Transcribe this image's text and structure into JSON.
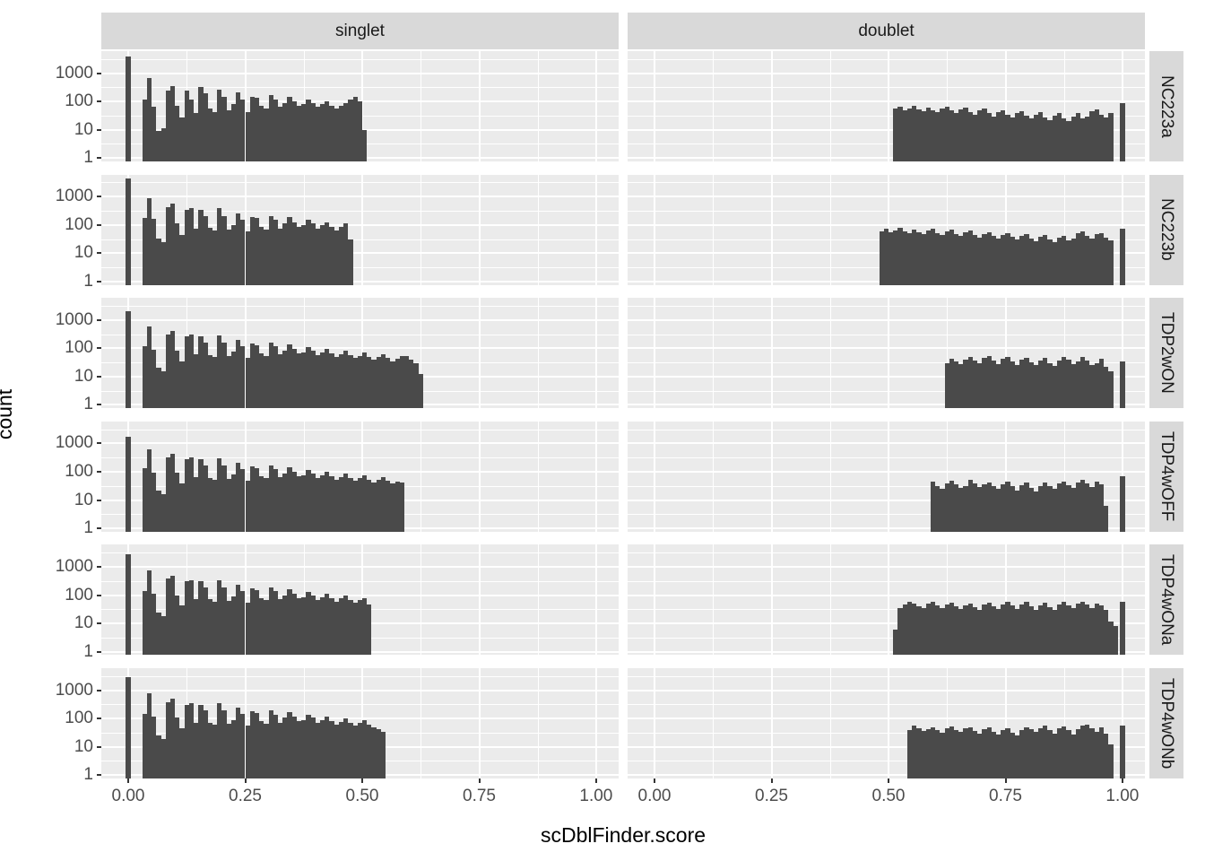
{
  "chart_data": {
    "type": "bar",
    "subtype": "faceted-histogram-grid",
    "title": "",
    "xlabel": "scDblFinder.score",
    "ylabel": "count",
    "x_axis": {
      "label": "scDblFinder.score",
      "ticks": [
        0.0,
        0.25,
        0.5,
        0.75,
        1.0
      ],
      "tick_labels": [
        "0.00",
        "0.25",
        "0.50",
        "0.75",
        "1.00"
      ],
      "minor_ticks": [
        0.125,
        0.375,
        0.625,
        0.875
      ],
      "range": [
        -0.0575,
        1.048
      ]
    },
    "y_axis": {
      "label": "count",
      "scale": "log10",
      "ticks": [
        1,
        10,
        100,
        1000
      ],
      "tick_labels": [
        "1",
        "10",
        "100",
        "1000"
      ],
      "minor_log10": [
        0.5,
        1.5,
        2.5,
        3.5
      ],
      "range_log10": [
        -0.12,
        3.78
      ]
    },
    "col_facets": [
      "singlet",
      "doublet"
    ],
    "row_facets": [
      "NC223a",
      "NC223b",
      "TDP2wON",
      "TDP4wOFF",
      "TDP4wONa",
      "TDP4wONb"
    ],
    "binwidth": 0.01,
    "colors": {
      "bar": "#4a4a4a",
      "panel_bg": "#EBEBEB",
      "strip_bg": "#D9D9D9",
      "grid": "#ffffff",
      "tick_text": "#4D4D4D",
      "strip_text": "#1a1a1a",
      "axis_title_text": "#000000"
    },
    "grid": true,
    "legend": "none",
    "panels": [
      {
        "row": "NC223a",
        "col": "singlet",
        "zero_bar": {
          "x": 0.0,
          "count": 4000
        },
        "bars_start": 0.03,
        "counts": [
          115,
          690,
          63,
          9,
          11,
          245,
          355,
          71,
          28,
          245,
          115,
          38,
          315,
          190,
          55,
          43,
          256,
          150,
          49,
          80,
          215,
          115,
          43,
          150,
          132,
          71,
          55,
          167,
          115,
          63,
          90,
          150,
          102,
          71,
          80,
          115,
          90,
          63,
          80,
          102,
          71,
          55,
          71,
          90,
          120,
          142,
          100,
          10
        ]
      },
      {
        "row": "NC223a",
        "col": "doublet",
        "bars_start": 0.51,
        "counts": [
          55,
          65,
          48,
          58,
          70,
          52,
          45,
          60,
          50,
          42,
          55,
          65,
          48,
          38,
          52,
          60,
          42,
          35,
          48,
          55,
          38,
          30,
          42,
          50,
          35,
          28,
          38,
          45,
          32,
          25,
          35,
          42,
          28,
          22,
          32,
          40,
          26,
          20,
          30,
          38,
          25,
          30,
          45,
          52,
          35,
          28,
          40
        ],
        "end_bar": {
          "x": 1.0,
          "count": 90
        }
      },
      {
        "row": "NC223b",
        "col": "singlet",
        "zero_bar": {
          "x": 0.0,
          "count": 4400
        },
        "bars_start": 0.03,
        "counts": [
          170,
          900,
          165,
          32,
          24,
          430,
          560,
          110,
          45,
          330,
          380,
          75,
          330,
          210,
          80,
          65,
          380,
          210,
          70,
          95,
          260,
          150,
          60,
          195,
          170,
          85,
          70,
          210,
          150,
          75,
          110,
          185,
          120,
          85,
          95,
          150,
          110,
          75,
          95,
          120,
          85,
          65,
          85,
          110,
          30
        ]
      },
      {
        "row": "NC223b",
        "col": "doublet",
        "bars_start": 0.48,
        "counts": [
          60,
          72,
          55,
          65,
          80,
          58,
          50,
          68,
          56,
          48,
          62,
          72,
          52,
          44,
          58,
          66,
          48,
          40,
          54,
          62,
          44,
          36,
          48,
          56,
          40,
          33,
          44,
          52,
          38,
          30,
          42,
          48,
          34,
          27,
          38,
          45,
          30,
          25,
          36,
          42,
          28,
          34,
          50,
          58,
          40,
          32,
          46,
          52,
          36,
          28
        ],
        "end_bar": {
          "x": 1.0,
          "count": 75
        }
      },
      {
        "row": "TDP2wON",
        "col": "singlet",
        "zero_bar": {
          "x": 0.0,
          "count": 2100
        },
        "bars_start": 0.03,
        "counts": [
          120,
          600,
          90,
          20,
          15,
          310,
          420,
          85,
          35,
          260,
          300,
          60,
          260,
          160,
          58,
          48,
          290,
          160,
          52,
          75,
          205,
          120,
          45,
          150,
          130,
          68,
          55,
          160,
          115,
          60,
          85,
          140,
          95,
          65,
          72,
          110,
          85,
          58,
          70,
          95,
          65,
          50,
          62,
          80,
          58,
          45,
          55,
          70,
          50,
          40,
          48,
          62,
          45,
          35,
          42,
          55,
          52,
          40,
          30,
          12
        ]
      },
      {
        "row": "TDP2wON",
        "col": "doublet",
        "bars_start": 0.62,
        "counts": [
          30,
          42,
          35,
          28,
          40,
          50,
          38,
          30,
          45,
          52,
          36,
          28,
          42,
          48,
          34,
          26,
          40,
          46,
          32,
          25,
          38,
          45,
          30,
          24,
          36,
          50,
          40,
          28,
          35,
          48,
          38,
          25,
          30,
          44,
          22,
          15
        ],
        "end_bar": {
          "x": 1.0,
          "count": 35
        }
      },
      {
        "row": "TDP4wOFF",
        "col": "singlet",
        "zero_bar": {
          "x": 0.0,
          "count": 1700
        },
        "bars_start": 0.03,
        "counts": [
          130,
          640,
          95,
          22,
          16,
          320,
          430,
          90,
          38,
          270,
          310,
          62,
          270,
          165,
          60,
          50,
          300,
          165,
          55,
          78,
          210,
          125,
          48,
          155,
          135,
          70,
          58,
          165,
          120,
          62,
          88,
          145,
          98,
          68,
          75,
          115,
          88,
          60,
          72,
          98,
          68,
          52,
          65,
          85,
          60,
          48,
          58,
          72,
          52,
          42,
          50,
          65,
          48,
          38,
          45,
          40
        ]
      },
      {
        "row": "TDP4wOFF",
        "col": "doublet",
        "bars_start": 0.59,
        "counts": [
          45,
          30,
          25,
          38,
          48,
          35,
          26,
          32,
          50,
          38,
          28,
          35,
          42,
          30,
          24,
          36,
          44,
          30,
          22,
          34,
          40,
          26,
          20,
          30,
          42,
          32,
          24,
          38,
          46,
          34,
          26,
          40,
          50,
          38,
          28,
          45,
          35,
          6
        ],
        "end_bar": {
          "x": 1.0,
          "count": 70
        }
      },
      {
        "row": "TDP4wONa",
        "col": "singlet",
        "zero_bar": {
          "x": 0.0,
          "count": 2800
        },
        "bars_start": 0.03,
        "counts": [
          140,
          750,
          110,
          25,
          18,
          380,
          480,
          100,
          42,
          300,
          340,
          70,
          300,
          185,
          70,
          58,
          330,
          185,
          62,
          88,
          235,
          140,
          55,
          175,
          150,
          80,
          65,
          185,
          135,
          70,
          100,
          165,
          110,
          78,
          85,
          130,
          100,
          68,
          82,
          110,
          78,
          60,
          75,
          95,
          68,
          55,
          65,
          80,
          45
        ]
      },
      {
        "row": "TDP4wONa",
        "col": "doublet",
        "bars_start": 0.51,
        "counts": [
          6,
          35,
          48,
          60,
          52,
          40,
          35,
          50,
          58,
          42,
          34,
          46,
          55,
          40,
          32,
          44,
          52,
          38,
          30,
          45,
          55,
          40,
          32,
          48,
          58,
          42,
          33,
          46,
          56,
          40,
          30,
          44,
          54,
          38,
          30,
          46,
          58,
          44,
          34,
          50,
          60,
          45,
          35,
          52,
          42,
          30,
          12,
          8
        ],
        "end_bar": {
          "x": 1.0,
          "count": 60
        }
      },
      {
        "row": "TDP4wONb",
        "col": "singlet",
        "zero_bar": {
          "x": 0.0,
          "count": 2900
        },
        "bars_start": 0.03,
        "counts": [
          145,
          780,
          115,
          26,
          19,
          390,
          500,
          105,
          44,
          310,
          350,
          72,
          310,
          190,
          72,
          60,
          340,
          190,
          64,
          90,
          240,
          145,
          57,
          180,
          155,
          82,
          67,
          190,
          140,
          72,
          105,
          170,
          115,
          80,
          88,
          135,
          105,
          70,
          85,
          115,
          80,
          62,
          78,
          100,
          70,
          57,
          68,
          85,
          60,
          48,
          42,
          35
        ]
      },
      {
        "row": "TDP4wONb",
        "col": "doublet",
        "bars_start": 0.54,
        "counts": [
          40,
          55,
          45,
          36,
          42,
          50,
          38,
          32,
          44,
          52,
          40,
          33,
          45,
          50,
          36,
          30,
          42,
          48,
          35,
          28,
          40,
          46,
          32,
          26,
          38,
          50,
          42,
          34,
          46,
          55,
          40,
          30,
          44,
          52,
          38,
          28,
          42,
          56,
          60,
          45,
          35,
          48,
          30,
          12
        ],
        "end_bar": {
          "x": 1.0,
          "count": 55
        }
      }
    ]
  }
}
